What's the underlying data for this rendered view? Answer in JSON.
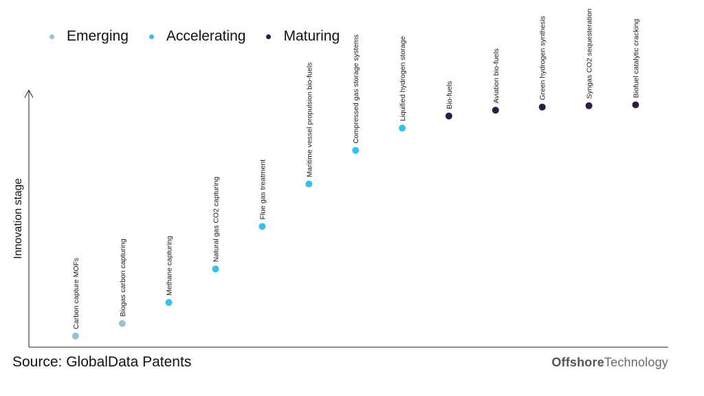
{
  "chart_data": {
    "type": "scatter",
    "title": "",
    "xlabel": "",
    "ylabel": "Innovation stage",
    "legend": {
      "position": "top-left"
    },
    "series": [
      {
        "name": "Emerging",
        "color": "#98c2d3",
        "labels": [
          "Carbon capture MOFs",
          "Biogas carbon capturing"
        ],
        "x": [
          1,
          2
        ],
        "y": [
          2.5,
          5.3
        ]
      },
      {
        "name": "Accelerating",
        "color": "#32c2f0",
        "labels": [
          "Methane capturing",
          "Natural gas CO2 capturing",
          "Flue gas treatment",
          "Maritime vessel propulsion bio-fuels",
          "Compressed gas storage systems",
          "Liquified hydrogen storage"
        ],
        "x": [
          3,
          4,
          5,
          6,
          7,
          8
        ],
        "y": [
          10,
          17.5,
          27,
          36.5,
          44,
          49
        ]
      },
      {
        "name": "Maturing",
        "color": "#2e1a47",
        "labels": [
          "Bio-fuels",
          "Aviation bio-fuels",
          "Green hydrogen synthesis",
          "Syngas CO2 sequesteration",
          "Biofuel catalytic cracking"
        ],
        "x": [
          9,
          10,
          11,
          12,
          13
        ],
        "y": [
          51.7,
          53,
          53.7,
          54,
          54.2
        ]
      }
    ],
    "xlim": [
      0,
      13.7
    ],
    "ylim": [
      0,
      57.5
    ],
    "grid": false
  },
  "footer": {
    "source": "Source: GlobalData Patents",
    "brand_bold": "Offshore",
    "brand_rest": "Technology"
  }
}
